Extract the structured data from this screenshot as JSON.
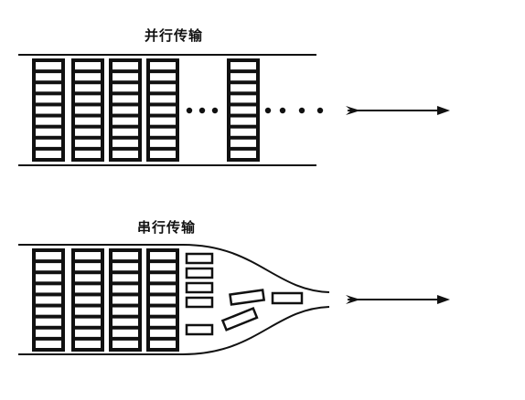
{
  "parallel": {
    "title": "并行传输"
  },
  "serial": {
    "title": "串行传输"
  },
  "colors": {
    "ink": "#111111",
    "background": "#ffffff"
  }
}
